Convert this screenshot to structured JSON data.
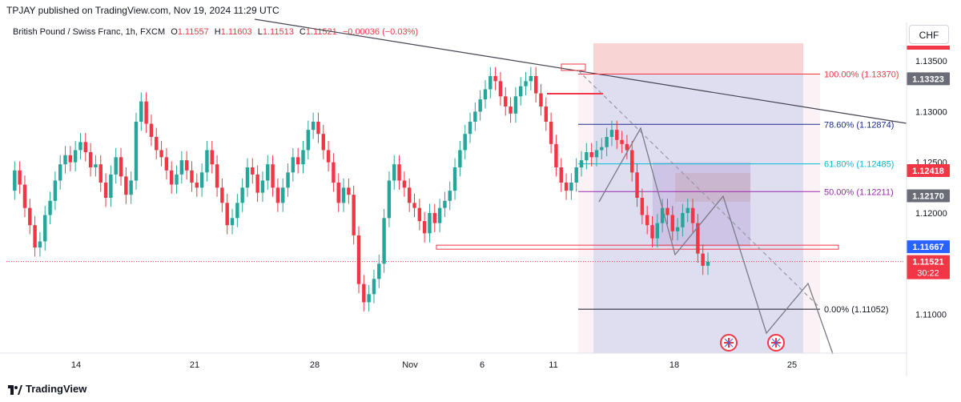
{
  "header": {
    "publisher": "TPJAY published on TradingView.com, Nov 19, 2024 11:29 UTC"
  },
  "symbol": {
    "name": "British Pound / Swiss Franc, 1h, FXCM",
    "o_label": "O",
    "o": "1.11557",
    "h_label": "H",
    "h": "1.11603",
    "l_label": "L",
    "l": "1.11513",
    "c_label": "C",
    "c": "1.11521",
    "change": "−0.00036 (−0.03%)"
  },
  "currency_button": "CHF",
  "footer": {
    "brand": "TradingView"
  },
  "colors": {
    "up": "#26a69a",
    "down": "#f23645",
    "trendline": "#434651",
    "fib_100": "#f23645",
    "fib_786": "#1e2b8e",
    "fib_618": "#00bcd4",
    "fib_50": "#9c27b0",
    "fib_0": "#131722",
    "stop_zone": "#f7c6c6",
    "target_zone": "#c5d5f5",
    "badge_dark": "#6a6d78",
    "badge_red": "#f23645",
    "badge_blue": "#2962ff"
  },
  "chart_data": {
    "type": "line",
    "title": "British Pound / Swiss Franc, 1h, FXCM",
    "x_tick_labels": [
      "14",
      "21",
      "28",
      "Nov",
      "6",
      "11",
      "18",
      "25"
    ],
    "y_ticks": [
      1.135,
      1.13,
      1.125,
      1.12,
      1.11
    ],
    "y_tick_labels": [
      "1.13500",
      "1.13000",
      "1.12500",
      "1.12000",
      "1.11000"
    ],
    "ylim": [
      1.1065,
      1.1365
    ],
    "grid": false,
    "series": [
      {
        "values": [
          1.1222,
          1.1242,
          1.1228,
          1.1205,
          1.1188,
          1.1166,
          1.1172,
          1.1198,
          1.1212,
          1.1232,
          1.1248,
          1.1257,
          1.125,
          1.1262,
          1.127,
          1.126,
          1.1245,
          1.1248,
          1.123,
          1.1215,
          1.1238,
          1.1255,
          1.1236,
          1.1218,
          1.1232,
          1.129,
          1.131,
          1.1288,
          1.1275,
          1.1262,
          1.1255,
          1.1242,
          1.1228,
          1.1238,
          1.1252,
          1.1242,
          1.123,
          1.1225,
          1.124,
          1.1262,
          1.1248,
          1.1225,
          1.121,
          1.1188,
          1.1195,
          1.121,
          1.1225,
          1.1245,
          1.1238,
          1.122,
          1.1232,
          1.1248,
          1.1225,
          1.121,
          1.1225,
          1.124,
          1.1255,
          1.1248,
          1.1262,
          1.1282,
          1.129,
          1.1278,
          1.1262,
          1.125,
          1.123,
          1.121,
          1.1225,
          1.1218,
          1.1178,
          1.113,
          1.1112,
          1.112,
          1.1135,
          1.115,
          1.1195,
          1.1232,
          1.1248,
          1.1232,
          1.1225,
          1.121,
          1.1205,
          1.1192,
          1.118,
          1.12,
          1.119,
          1.1205,
          1.1212,
          1.1222,
          1.1245,
          1.1262,
          1.1278,
          1.129,
          1.13,
          1.1312,
          1.1322,
          1.1335,
          1.133,
          1.1315,
          1.1305,
          1.1298,
          1.1315,
          1.1325,
          1.133,
          1.1335,
          1.1318,
          1.1305,
          1.129,
          1.1268,
          1.1245,
          1.123,
          1.1222,
          1.123,
          1.1245,
          1.1252,
          1.126,
          1.1255,
          1.1262,
          1.1265,
          1.1275,
          1.1282,
          1.1272,
          1.1268,
          1.1262,
          1.124,
          1.1215,
          1.1198,
          1.1188,
          1.1175,
          1.119,
          1.1205,
          1.1198,
          1.1182,
          1.1186,
          1.12,
          1.1205,
          1.119,
          1.116,
          1.1148,
          1.1152
        ]
      }
    ],
    "fibonacci": [
      {
        "level": "100.00%",
        "price": 1.1337,
        "label": "100.00% (1.13370)"
      },
      {
        "level": "78.60%",
        "price": 1.12874,
        "label": "78.60% (1.12874)"
      },
      {
        "level": "61.80%",
        "price": 1.12485,
        "label": "61.80% (1.12485)"
      },
      {
        "level": "50.00%",
        "price": 1.12211,
        "label": "50.00% (1.12211)"
      },
      {
        "level": "0.00%",
        "price": 1.11052,
        "label": "0.00% (1.11052)"
      }
    ],
    "price_badges": [
      {
        "value": 1.13323,
        "label": "1.13323",
        "kind": "dark"
      },
      {
        "value": 1.12418,
        "label": "1.12418",
        "kind": "red"
      },
      {
        "value": 1.1217,
        "label": "1.12170",
        "kind": "dark"
      },
      {
        "value": 1.11667,
        "label": "1.11667",
        "kind": "blue"
      },
      {
        "value": 1.11521,
        "label": "1.11521",
        "kind": "red",
        "sub": "30:22"
      }
    ],
    "projection_path": [
      1.1242,
      1.114,
      1.1275,
      1.1198,
      1.113
    ]
  }
}
